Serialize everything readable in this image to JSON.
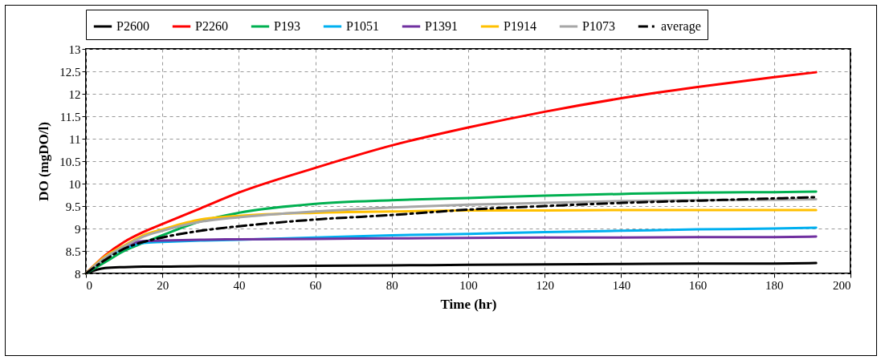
{
  "chart_data": {
    "type": "line",
    "xlabel": "Time (hr)",
    "ylabel": "DO (mgDO/l)",
    "xlim": [
      0,
      200
    ],
    "xticks": [
      0,
      20,
      40,
      60,
      80,
      100,
      120,
      140,
      160,
      180,
      200
    ],
    "ylim": [
      8,
      13
    ],
    "yticks": [
      8,
      8.5,
      9,
      9.5,
      10,
      10.5,
      11,
      11.5,
      12,
      12.5,
      13
    ],
    "grid": true,
    "legend": "top",
    "marker": "none",
    "line_style": "solid",
    "x": [
      0,
      5,
      10,
      15,
      20,
      30,
      40,
      60,
      80,
      100,
      120,
      140,
      160,
      180,
      191
    ],
    "series": [
      {
        "name": "P2600",
        "color": "#000000",
        "values": [
          8,
          8.12,
          8.14,
          8.15,
          8.15,
          8.16,
          8.16,
          8.17,
          8.18,
          8.19,
          8.2,
          8.21,
          8.22,
          8.22,
          8.23
        ]
      },
      {
        "name": "P2260",
        "color": "#ff0000",
        "values": [
          8,
          8.4,
          8.7,
          8.92,
          9.1,
          9.45,
          9.8,
          10.35,
          10.85,
          11.25,
          11.6,
          11.9,
          12.15,
          12.37,
          12.48
        ]
      },
      {
        "name": "P193",
        "color": "#00b050",
        "values": [
          8,
          8.25,
          8.5,
          8.68,
          8.85,
          9.16,
          9.35,
          9.55,
          9.63,
          9.68,
          9.73,
          9.77,
          9.8,
          9.81,
          9.82
        ]
      },
      {
        "name": "P1051",
        "color": "#00b0f0",
        "values": [
          8,
          8.35,
          8.55,
          8.68,
          8.7,
          8.73,
          8.75,
          8.8,
          8.85,
          8.88,
          8.92,
          8.95,
          8.98,
          9.0,
          9.02
        ]
      },
      {
        "name": "P1391",
        "color": "#7030a0",
        "values": [
          8,
          8.35,
          8.6,
          8.72,
          8.73,
          8.75,
          8.76,
          8.77,
          8.78,
          8.79,
          8.8,
          8.8,
          8.81,
          8.81,
          8.82
        ]
      },
      {
        "name": "P1914",
        "color": "#ffc000",
        "values": [
          8,
          8.38,
          8.62,
          8.85,
          8.98,
          9.2,
          9.28,
          9.35,
          9.38,
          9.4,
          9.4,
          9.41,
          9.41,
          9.41,
          9.41
        ]
      },
      {
        "name": "P1073",
        "color": "#a6a6a6",
        "values": [
          8,
          8.35,
          8.6,
          8.82,
          8.95,
          9.15,
          9.25,
          9.38,
          9.47,
          9.53,
          9.57,
          9.61,
          9.63,
          9.64,
          9.65
        ]
      },
      {
        "name": "average",
        "color": "#000000",
        "line_style": "dashed",
        "values": [
          8,
          8.3,
          8.55,
          8.7,
          8.8,
          8.95,
          9.05,
          9.2,
          9.3,
          9.42,
          9.5,
          9.57,
          9.62,
          9.67,
          9.7
        ]
      }
    ]
  }
}
